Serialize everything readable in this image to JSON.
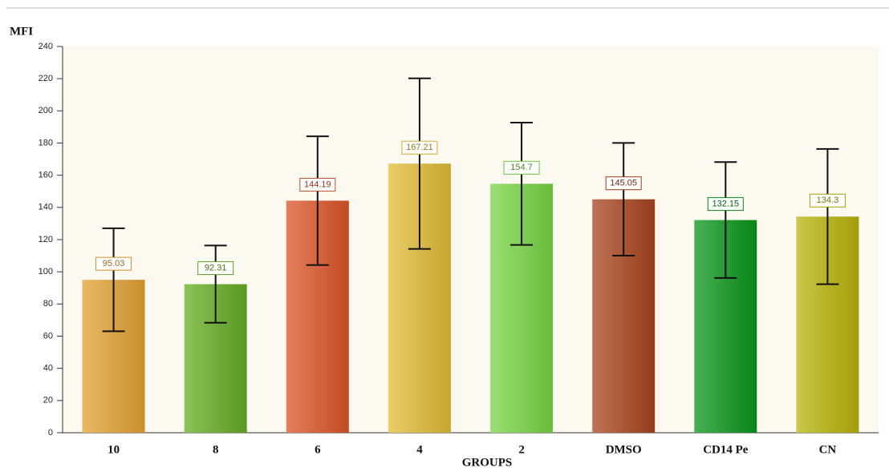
{
  "chart_data": {
    "type": "bar",
    "y_label": "MFI",
    "x_label": "GROUPS",
    "categories": [
      "10",
      "8",
      "6",
      "4",
      "2",
      "DMSO",
      "CD14 Pe",
      "CN"
    ],
    "values": [
      95.03,
      92.31,
      144.19,
      167.21,
      154.7,
      145.05,
      132.15,
      134.3
    ],
    "errors": [
      32,
      24,
      40,
      53,
      38,
      35,
      36,
      42
    ],
    "colors": [
      "#e3a232",
      "#66ad24",
      "#dc5428",
      "#e2bc36",
      "#78d444",
      "#a8441e",
      "#0a961a",
      "#b8b40a"
    ],
    "ylim": [
      0,
      240
    ],
    "yticks": [
      0,
      20,
      40,
      60,
      80,
      100,
      120,
      140,
      160,
      180,
      200,
      220,
      240
    ]
  }
}
